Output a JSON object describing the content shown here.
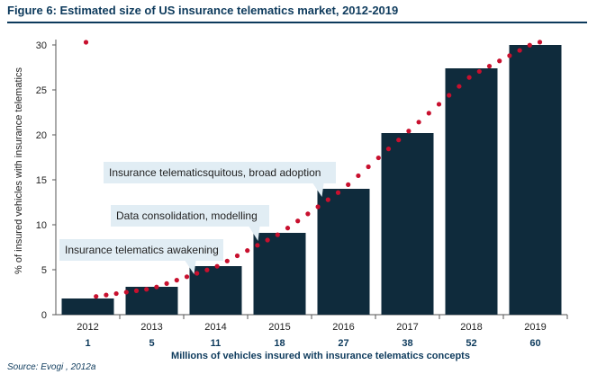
{
  "figure": {
    "title": "Figure 6: Estimated size of US insurance telematics market, 2012-2019",
    "source": "Source: Evogi , 2012a"
  },
  "chart_data": {
    "type": "bar",
    "categories": [
      "2012",
      "2013",
      "2014",
      "2015",
      "2016",
      "2017",
      "2018",
      "2019"
    ],
    "values": [
      1.8,
      3.1,
      5.4,
      9.1,
      14.0,
      20.2,
      27.4,
      30.0
    ],
    "vehicles_millions": [
      "1",
      "5",
      "11",
      "18",
      "27",
      "38",
      "52",
      "60"
    ],
    "trend_points": [
      [
        2012,
        1.9
      ],
      [
        2013,
        2.9
      ],
      [
        2014,
        5.3
      ],
      [
        2015,
        9.0
      ],
      [
        2016,
        14.0
      ],
      [
        2017,
        20.3
      ],
      [
        2018,
        26.6
      ],
      [
        2019,
        30.3
      ]
    ],
    "ylabel": "% of insured vehicles with insurance telematics",
    "xlabel": "Millions of vehicles insured with insurance telematics concepts",
    "ylim": [
      0,
      30
    ],
    "yticks": [
      "0",
      "5",
      "10",
      "15",
      "20",
      "25",
      "30"
    ],
    "grid": false,
    "bar_color": "#0f2b3c",
    "trend_color": "#c8102e",
    "annotations": [
      {
        "text": "Insurance telematics awakening",
        "x": "2014",
        "y": 5.4
      },
      {
        "text": "Data consolidation, modelling",
        "x": "2015",
        "y": 9.1
      },
      {
        "text": "Insurance telematicsquitous, broad adoption",
        "x": "2016",
        "y": 14.0
      }
    ]
  }
}
